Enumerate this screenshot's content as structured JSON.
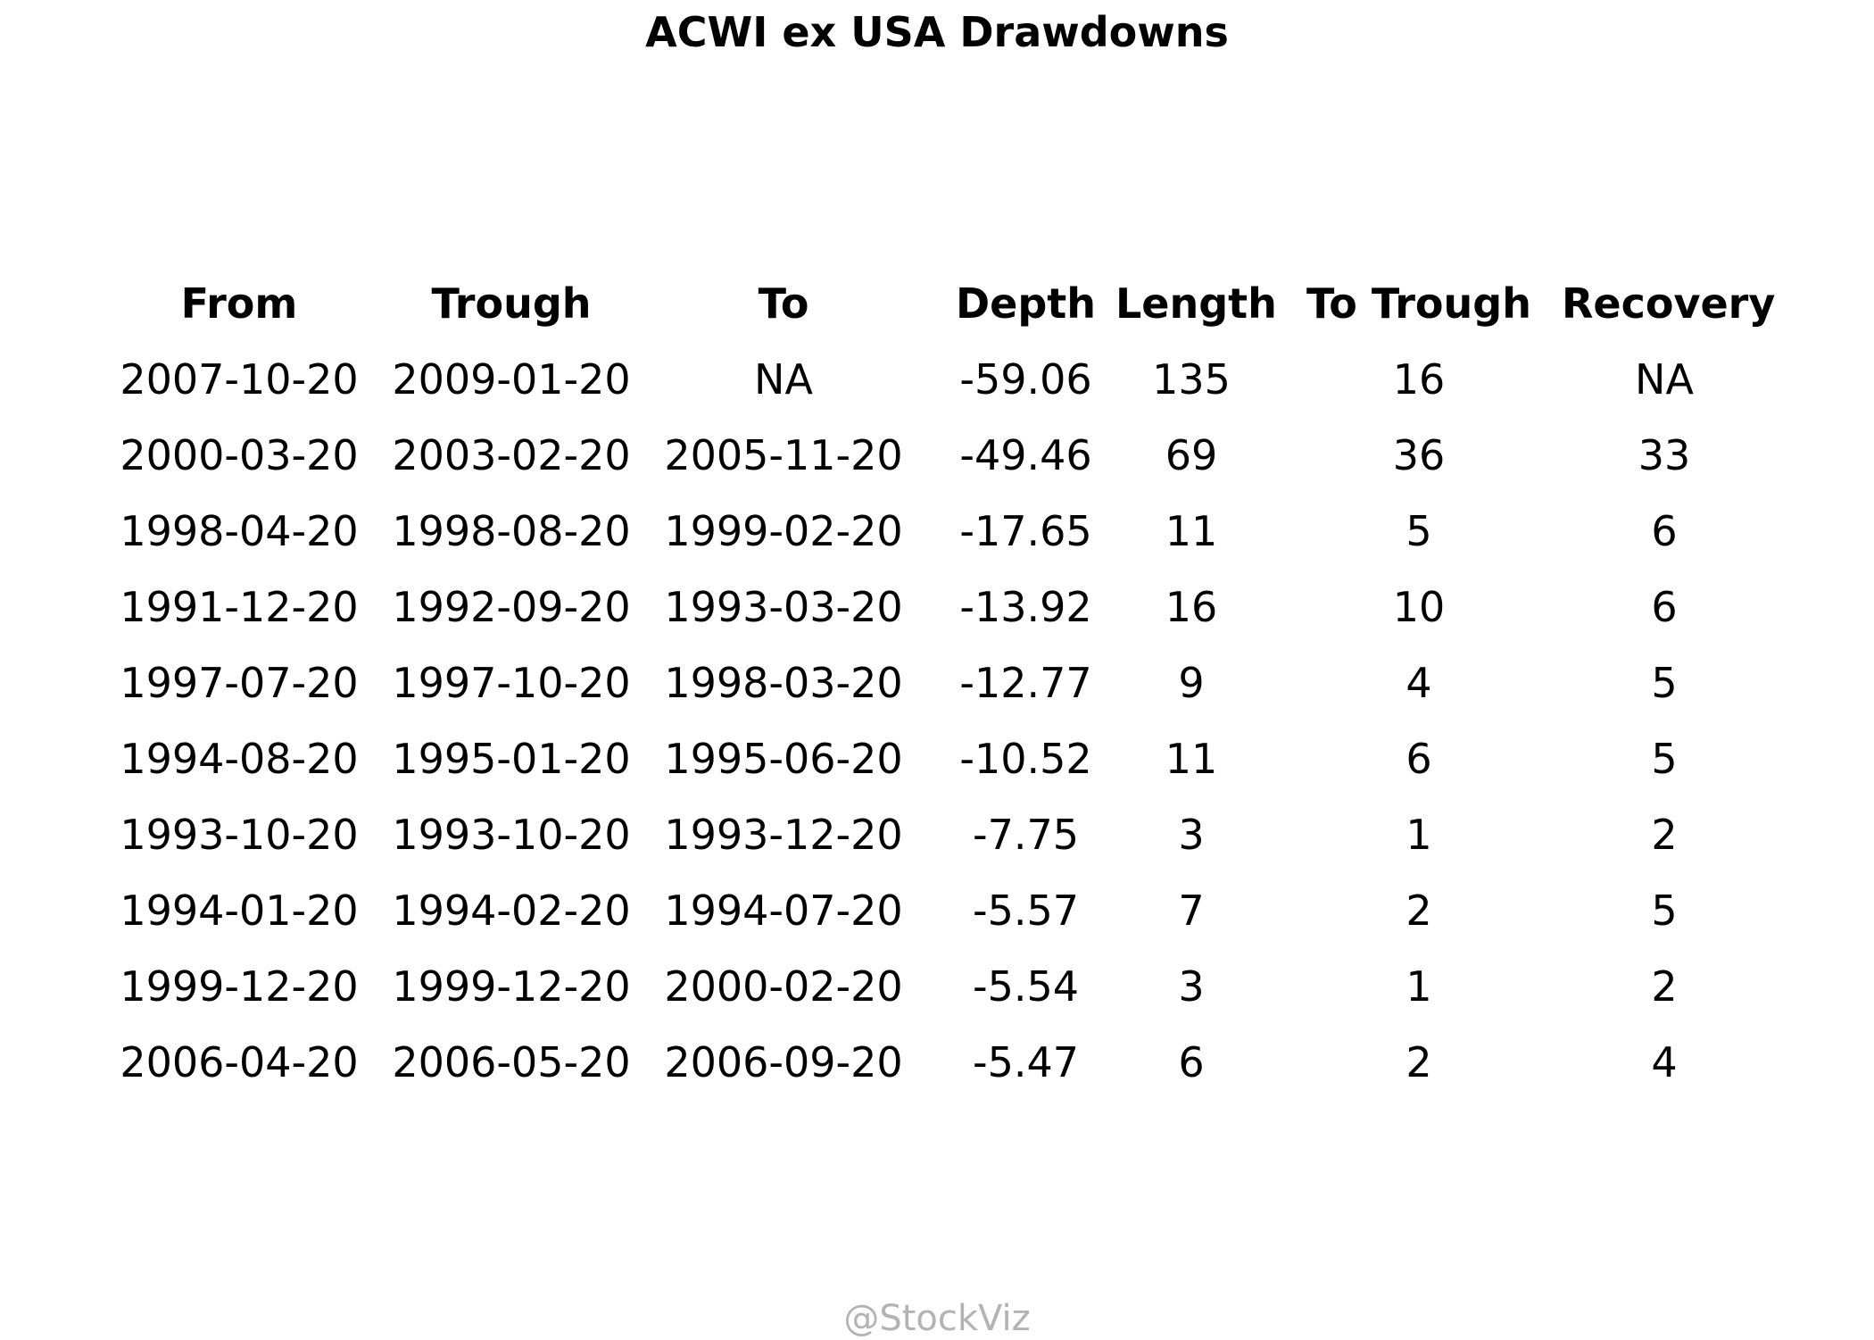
{
  "title": "ACWI ex USA Drawdowns",
  "watermark": "@StockViz",
  "chart_data": {
    "type": "table",
    "title": "ACWI ex USA Drawdowns",
    "columns": [
      "From",
      "Trough",
      "To",
      "Depth",
      "Length",
      "To Trough",
      "Recovery"
    ],
    "rows": [
      [
        "2007-10-20",
        "2009-01-20",
        "NA",
        "-59.06",
        "135",
        "16",
        "NA"
      ],
      [
        "2000-03-20",
        "2003-02-20",
        "2005-11-20",
        "-49.46",
        "69",
        "36",
        "33"
      ],
      [
        "1998-04-20",
        "1998-08-20",
        "1999-02-20",
        "-17.65",
        "11",
        "5",
        "6"
      ],
      [
        "1991-12-20",
        "1992-09-20",
        "1993-03-20",
        "-13.92",
        "16",
        "10",
        "6"
      ],
      [
        "1997-07-20",
        "1997-10-20",
        "1998-03-20",
        "-12.77",
        "9",
        "4",
        "5"
      ],
      [
        "1994-08-20",
        "1995-01-20",
        "1995-06-20",
        "-10.52",
        "11",
        "6",
        "5"
      ],
      [
        "1993-10-20",
        "1993-10-20",
        "1993-12-20",
        "-7.75",
        "3",
        "1",
        "2"
      ],
      [
        "1994-01-20",
        "1994-02-20",
        "1994-07-20",
        "-5.57",
        "7",
        "2",
        "5"
      ],
      [
        "1999-12-20",
        "1999-12-20",
        "2000-02-20",
        "-5.54",
        "3",
        "1",
        "2"
      ],
      [
        "2006-04-20",
        "2006-05-20",
        "2006-09-20",
        "-5.47",
        "6",
        "2",
        "4"
      ]
    ]
  }
}
